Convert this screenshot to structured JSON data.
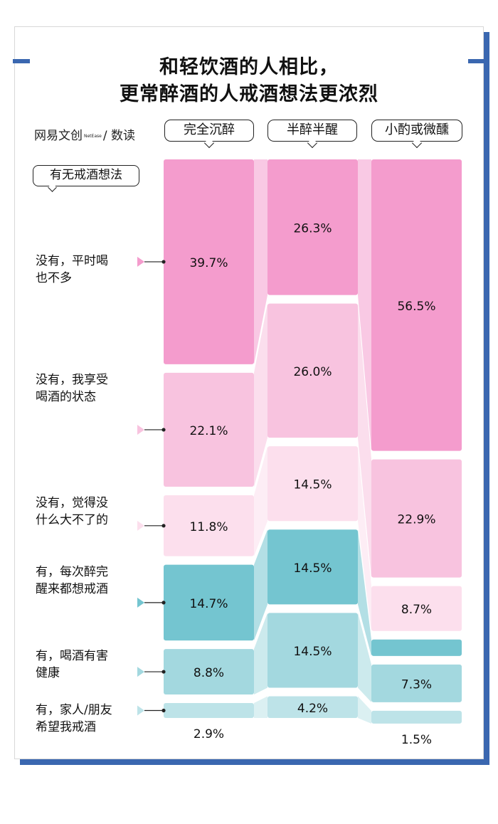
{
  "header": {
    "title_line1": "和轻饮酒的人相比，",
    "title_line2": "更常醉酒的人戒酒想法更浓烈",
    "brand_a": "网易文创",
    "brand_mid": "NetEase",
    "brand_b": "/ 数读"
  },
  "question_label": "有无戒酒想法",
  "colors": {
    "no_dark": "#f49ccd",
    "no_mid": "#f8c3df",
    "no_light": "#fcdfed",
    "yes_dark": "#74c5d0",
    "yes_mid": "#a3d8df",
    "yes_light": "#bde3e8",
    "shadow": "#3a67b0"
  },
  "chart_data": {
    "type": "stacked-bar",
    "categories": [
      "完全沉醉",
      "半醉半醒",
      "小酌或微醺"
    ],
    "series": [
      {
        "name": "没有，平时喝也不多",
        "label_lines": [
          "没有，平时喝",
          "也不多"
        ],
        "values": [
          39.7,
          26.3,
          56.5
        ]
      },
      {
        "name": "没有，我享受喝酒的状态",
        "label_lines": [
          "没有，我享受",
          "喝酒的状态"
        ],
        "values": [
          22.1,
          26.0,
          22.9
        ]
      },
      {
        "name": "没有，觉得没什么大不了的",
        "label_lines": [
          "没有，觉得没",
          "什么大不了的"
        ],
        "values": [
          11.8,
          14.5,
          8.7
        ]
      },
      {
        "name": "有，每次醉完醒来都想戒酒",
        "label_lines": [
          "有，每次醉完",
          "醒来都想戒酒"
        ],
        "values": [
          14.7,
          14.5,
          3.2
        ]
      },
      {
        "name": "有，喝酒有害健康",
        "label_lines": [
          "有，喝酒有害",
          "健康"
        ],
        "values": [
          8.8,
          14.5,
          7.3
        ]
      },
      {
        "name": "有，家人/朋友希望我戒酒",
        "label_lines": [
          "有，家人/朋友",
          "希望我戒酒"
        ],
        "values": [
          2.9,
          4.2,
          1.5
        ]
      }
    ],
    "value_labels": [
      [
        "39.7%",
        "22.1%",
        "11.8%",
        "14.7%",
        "8.8%",
        "2.9%"
      ],
      [
        "26.3%",
        "26.0%",
        "14.5%",
        "14.5%",
        "14.5%",
        "4.2%"
      ],
      [
        "56.5%",
        "22.9%",
        "8.7%",
        "3.2%",
        "7.3%",
        "1.5%"
      ]
    ],
    "unit": "%"
  }
}
